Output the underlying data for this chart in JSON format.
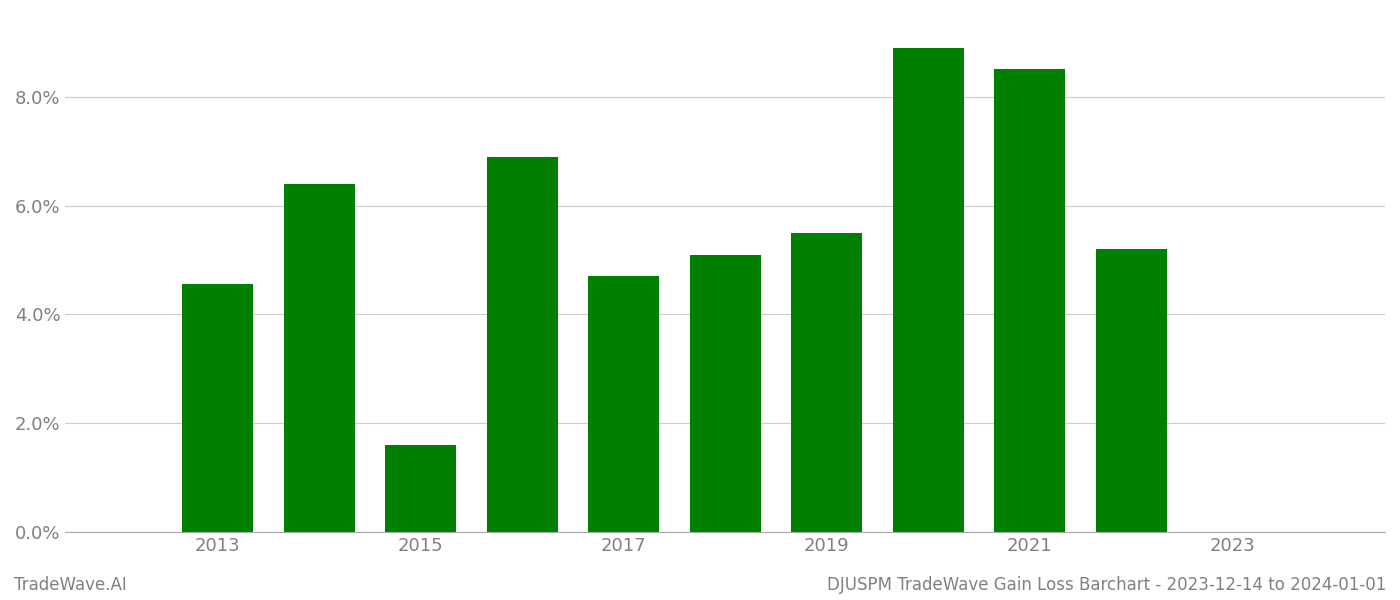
{
  "years": [
    2013,
    2014,
    2015,
    2016,
    2017,
    2018,
    2019,
    2020,
    2021,
    2022,
    2023
  ],
  "values": [
    0.0455,
    0.064,
    0.016,
    0.069,
    0.047,
    0.051,
    0.055,
    0.089,
    0.085,
    0.052,
    0.0
  ],
  "bar_color": "#008000",
  "background_color": "#ffffff",
  "footer_left": "TradeWave.AI",
  "footer_right": "DJUSPM TradeWave Gain Loss Barchart - 2023-12-14 to 2024-01-01",
  "ylim": [
    0,
    0.095
  ],
  "yticks": [
    0.0,
    0.02,
    0.04,
    0.06,
    0.08
  ],
  "xlim_min": 2011.5,
  "xlim_max": 2024.5,
  "xticks": [
    2013,
    2015,
    2017,
    2019,
    2021,
    2023
  ],
  "grid_color": "#cccccc",
  "text_color": "#808080",
  "bar_width": 0.7,
  "figsize": [
    14.0,
    6.0
  ],
  "dpi": 100
}
